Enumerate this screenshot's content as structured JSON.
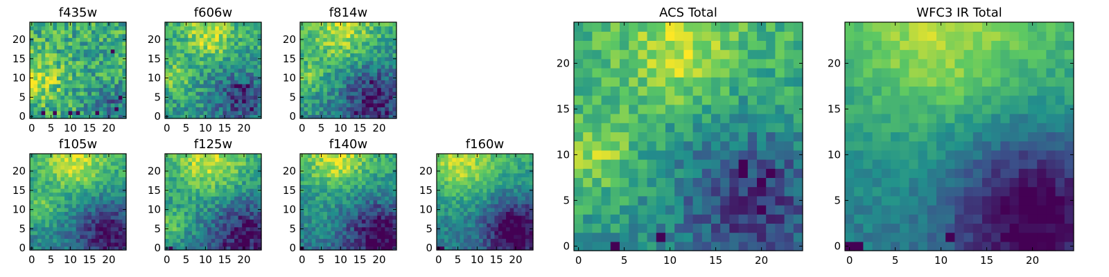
{
  "figure": {
    "colormap": "viridis",
    "colormap_stops": [
      "#440154",
      "#3b528b",
      "#21918c",
      "#5ec962",
      "#fde725"
    ]
  },
  "chart_data": [
    {
      "type": "heatmap",
      "id": "f435w",
      "title": "f435w",
      "grid_size": [
        25,
        25
      ],
      "xlim": [
        -0.5,
        24.5
      ],
      "ylim": [
        -0.5,
        24.5
      ],
      "xticks": [
        "0",
        "5",
        "10",
        "15",
        "20"
      ],
      "yticks": [
        "0",
        "5",
        "10",
        "15",
        "20"
      ],
      "field": {
        "base": 0.62,
        "gradient": [
          0.0,
          0.0
        ],
        "yellow_spots": [
          [
            2,
            10,
            4,
            0.28
          ]
        ],
        "blue_spots": [
          [
            20,
            3,
            4,
            0.25
          ]
        ],
        "noise": 0.22,
        "dark_pixels": [
          [
            3,
            1
          ],
          [
            6,
            1
          ],
          [
            10,
            1
          ],
          [
            12,
            1
          ],
          [
            22,
            2
          ],
          [
            17,
            1
          ],
          [
            21,
            17
          ],
          [
            23,
            5
          ]
        ],
        "seed": 11
      }
    },
    {
      "type": "heatmap",
      "id": "f606w",
      "title": "f606w",
      "grid_size": [
        25,
        25
      ],
      "xlim": [
        -0.5,
        24.5
      ],
      "ylim": [
        -0.5,
        24.5
      ],
      "xticks": [
        "0",
        "5",
        "10",
        "15",
        "20"
      ],
      "yticks": [
        "0",
        "5",
        "10",
        "15",
        "20"
      ],
      "field": {
        "base": 0.58,
        "gradient": [
          0.0,
          0.1
        ],
        "yellow_spots": [
          [
            11,
            21,
            4,
            0.3
          ],
          [
            2,
            10,
            3,
            0.25
          ]
        ],
        "blue_spots": [
          [
            19,
            5,
            5,
            0.35
          ]
        ],
        "noise": 0.18,
        "dark_pixels": [
          [
            18,
            8
          ],
          [
            19,
            8
          ],
          [
            20,
            7
          ],
          [
            21,
            8
          ],
          [
            20,
            4
          ],
          [
            22,
            2
          ]
        ],
        "seed": 23
      }
    },
    {
      "type": "heatmap",
      "id": "f814w",
      "title": "f814w",
      "grid_size": [
        25,
        25
      ],
      "xlim": [
        -0.5,
        24.5
      ],
      "ylim": [
        -0.5,
        24.5
      ],
      "xticks": [
        "0",
        "5",
        "10",
        "15",
        "20"
      ],
      "yticks": [
        "0",
        "5",
        "10",
        "15",
        "20"
      ],
      "field": {
        "base": 0.56,
        "gradient": [
          0.0,
          0.14
        ],
        "yellow_spots": [
          [
            10,
            22,
            5,
            0.3
          ],
          [
            2,
            10,
            3,
            0.2
          ]
        ],
        "blue_spots": [
          [
            19,
            5,
            6,
            0.4
          ]
        ],
        "noise": 0.17,
        "dark_pixels": [
          [
            18,
            9
          ],
          [
            20,
            7
          ],
          [
            21,
            3
          ],
          [
            19,
            2
          ],
          [
            22,
            1
          ],
          [
            14,
            1
          ],
          [
            16,
            4
          ]
        ],
        "seed": 37
      }
    },
    {
      "type": "heatmap",
      "id": "f105w",
      "title": "f105w",
      "grid_size": [
        25,
        25
      ],
      "xlim": [
        -0.5,
        24.5
      ],
      "ylim": [
        -0.5,
        24.5
      ],
      "xticks": [
        "0",
        "5",
        "10",
        "15",
        "20"
      ],
      "yticks": [
        "0",
        "5",
        "10",
        "15",
        "20"
      ],
      "field": {
        "base": 0.54,
        "gradient": [
          0.0,
          0.2
        ],
        "yellow_spots": [
          [
            11,
            22,
            5,
            0.32
          ],
          [
            2,
            10,
            3,
            0.22
          ]
        ],
        "blue_spots": [
          [
            20,
            4,
            6,
            0.42
          ]
        ],
        "noise": 0.13,
        "dark_pixels": [
          [
            20,
            3
          ],
          [
            22,
            1
          ],
          [
            18,
            5
          ]
        ],
        "seed": 41
      }
    },
    {
      "type": "heatmap",
      "id": "f125w",
      "title": "f125w",
      "grid_size": [
        25,
        25
      ],
      "xlim": [
        -0.5,
        24.5
      ],
      "ylim": [
        -0.5,
        24.5
      ],
      "xticks": [
        "0",
        "5",
        "10",
        "15",
        "20"
      ],
      "yticks": [
        "0",
        "5",
        "10",
        "15",
        "20"
      ],
      "field": {
        "base": 0.55,
        "gradient": [
          0.0,
          0.2
        ],
        "yellow_spots": [
          [
            11,
            22,
            5,
            0.3
          ],
          [
            1,
            6,
            3,
            0.22
          ]
        ],
        "blue_spots": [
          [
            20,
            4,
            6,
            0.42
          ]
        ],
        "noise": 0.15,
        "dark_pixels": [
          [
            18,
            5
          ],
          [
            20,
            2
          ],
          [
            21,
            7
          ],
          [
            15,
            1
          ],
          [
            1,
            0
          ]
        ],
        "seed": 53
      }
    },
    {
      "type": "heatmap",
      "id": "f140w",
      "title": "f140w",
      "grid_size": [
        25,
        25
      ],
      "xlim": [
        -0.5,
        24.5
      ],
      "ylim": [
        -0.5,
        24.5
      ],
      "xticks": [
        "0",
        "5",
        "10",
        "15",
        "20"
      ],
      "yticks": [
        "0",
        "5",
        "10",
        "15",
        "20"
      ],
      "field": {
        "base": 0.52,
        "gradient": [
          0.0,
          0.22
        ],
        "yellow_spots": [
          [
            9,
            23,
            5,
            0.32
          ]
        ],
        "blue_spots": [
          [
            20,
            4,
            6,
            0.45
          ]
        ],
        "noise": 0.14,
        "dark_pixels": [
          [
            20,
            8
          ],
          [
            23,
            2
          ],
          [
            19,
            1
          ],
          [
            0,
            0
          ]
        ],
        "seed": 67
      }
    },
    {
      "type": "heatmap",
      "id": "f160w",
      "title": "f160w",
      "grid_size": [
        25,
        25
      ],
      "xlim": [
        -0.5,
        24.5
      ],
      "ylim": [
        -0.5,
        24.5
      ],
      "xticks": [
        "0",
        "5",
        "10",
        "15",
        "20"
      ],
      "yticks": [
        "0",
        "5",
        "10",
        "15",
        "20"
      ],
      "field": {
        "base": 0.52,
        "gradient": [
          0.0,
          0.2
        ],
        "yellow_spots": [
          [
            6,
            22,
            6,
            0.3
          ]
        ],
        "blue_spots": [
          [
            20,
            5,
            6,
            0.5
          ]
        ],
        "noise": 0.12,
        "dark_pixels": [
          [
            18,
            6
          ],
          [
            19,
            5
          ],
          [
            20,
            4
          ],
          [
            21,
            5
          ],
          [
            22,
            5
          ],
          [
            20,
            2
          ],
          [
            1,
            0
          ],
          [
            0,
            0
          ]
        ],
        "seed": 79
      }
    },
    {
      "type": "heatmap",
      "id": "acs-total",
      "title": "ACS Total",
      "grid_size": [
        25,
        25
      ],
      "xlim": [
        -0.5,
        24.5
      ],
      "ylim": [
        -0.5,
        24.5
      ],
      "xticks": [
        "0",
        "5",
        "10",
        "15",
        "20"
      ],
      "yticks": [
        "0",
        "5",
        "10",
        "15",
        "20"
      ],
      "field": {
        "base": 0.6,
        "gradient": [
          0.0,
          0.12
        ],
        "yellow_spots": [
          [
            11,
            21,
            4,
            0.28
          ],
          [
            2,
            10,
            3,
            0.25
          ]
        ],
        "blue_spots": [
          [
            19,
            5,
            6,
            0.4
          ]
        ],
        "noise": 0.14,
        "dark_pixels": [
          [
            18,
            9
          ],
          [
            18,
            8
          ],
          [
            20,
            7
          ],
          [
            21,
            8
          ],
          [
            20,
            4
          ],
          [
            4,
            0
          ],
          [
            9,
            1
          ]
        ],
        "seed": 97
      }
    },
    {
      "type": "heatmap",
      "id": "wfc3-ir-total",
      "title": "WFC3 IR Total",
      "grid_size": [
        25,
        25
      ],
      "xlim": [
        -0.5,
        24.5
      ],
      "ylim": [
        -0.5,
        24.5
      ],
      "xticks": [
        "0",
        "5",
        "10",
        "15",
        "20"
      ],
      "yticks": [
        "0",
        "5",
        "10",
        "15",
        "20"
      ],
      "field": {
        "base": 0.54,
        "gradient": [
          0.0,
          0.26
        ],
        "yellow_spots": [
          [
            10,
            22,
            6,
            0.22
          ]
        ],
        "blue_spots": [
          [
            20,
            4,
            6,
            0.48
          ]
        ],
        "noise": 0.08,
        "dark_pixels": [
          [
            0,
            0
          ],
          [
            1,
            0
          ],
          [
            11,
            1
          ],
          [
            18,
            2
          ],
          [
            19,
            1
          ],
          [
            20,
            1
          ],
          [
            19,
            5
          ],
          [
            20,
            5
          ],
          [
            21,
            4
          ],
          [
            21,
            3
          ]
        ],
        "seed": 101
      }
    }
  ]
}
